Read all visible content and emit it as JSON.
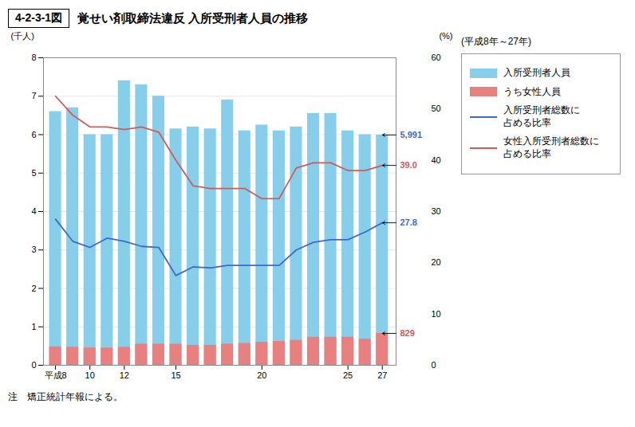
{
  "chart_data": {
    "type": "bar",
    "header": "4-2-3-1図",
    "title": "覚せい剤取締法違反 入所受刑者人員の推移",
    "subtitle": "(平成8年～27年)",
    "note": "注　矯正統計年報による。",
    "x": [
      8,
      9,
      10,
      11,
      12,
      13,
      14,
      15,
      16,
      17,
      18,
      19,
      20,
      21,
      22,
      23,
      24,
      25,
      26,
      27
    ],
    "xlim": [
      7.3,
      27.8
    ],
    "xticks": [
      {
        "value": 8,
        "label": "平成8"
      },
      10,
      12,
      15,
      20,
      25,
      27
    ],
    "ylabel": "(千人)",
    "y2label": "(%)",
    "ylim": [
      0,
      8
    ],
    "yticks": [
      0,
      1,
      2,
      3,
      4,
      5,
      6,
      7,
      8
    ],
    "y2lim": [
      0,
      60
    ],
    "y2ticks": [
      0,
      10,
      20,
      30,
      40,
      50,
      60
    ],
    "grid": "y",
    "legend": "right",
    "stacked": false,
    "series": [
      {
        "name": "入所受刑者人員",
        "type": "bar",
        "color": "#87CEEB",
        "values": [
          6.6,
          6.7,
          6.0,
          6.0,
          7.4,
          7.3,
          7.0,
          6.15,
          6.2,
          6.15,
          6.9,
          6.1,
          6.25,
          6.1,
          6.2,
          6.55,
          6.55,
          6.1,
          6.0,
          5.991
        ]
      },
      {
        "name": "うち女性人員",
        "type": "bar",
        "color": "#E88080",
        "values": [
          0.48,
          0.47,
          0.45,
          0.45,
          0.47,
          0.55,
          0.55,
          0.55,
          0.52,
          0.52,
          0.55,
          0.57,
          0.6,
          0.62,
          0.65,
          0.73,
          0.73,
          0.73,
          0.68,
          0.829
        ]
      },
      {
        "name": "入所受刑者総数に\n占める比率",
        "type": "line",
        "axis": "y2",
        "color": "#4169C8",
        "values": [
          28.5,
          24.2,
          23.0,
          24.8,
          24.2,
          23.2,
          23.0,
          17.5,
          19.2,
          19.0,
          19.5,
          19.5,
          19.5,
          19.5,
          22.5,
          24.0,
          24.5,
          24.5,
          26.0,
          27.8
        ]
      },
      {
        "name": "女性入所受刑者総数に\n占める比率",
        "type": "line",
        "axis": "y2",
        "color": "#CD5C5C",
        "values": [
          52.5,
          48.8,
          46.5,
          46.5,
          46.0,
          46.5,
          45.5,
          40.0,
          35.0,
          34.5,
          34.5,
          34.5,
          32.5,
          32.5,
          38.5,
          39.5,
          39.5,
          38.0,
          38.0,
          39.0
        ]
      }
    ],
    "annotations": [
      {
        "text": "5,991",
        "x": 27,
        "y": 5.991,
        "color": "#4169C8"
      },
      {
        "text": "39.0",
        "x": 27,
        "y": 39.0,
        "axis": "y2",
        "color": "#CD5C5C"
      },
      {
        "text": "27.8",
        "x": 27,
        "y": 27.8,
        "axis": "y2",
        "color": "#4169C8"
      },
      {
        "text": "829",
        "x": 27,
        "y": 0.829,
        "color": "#CD5C5C"
      }
    ]
  }
}
